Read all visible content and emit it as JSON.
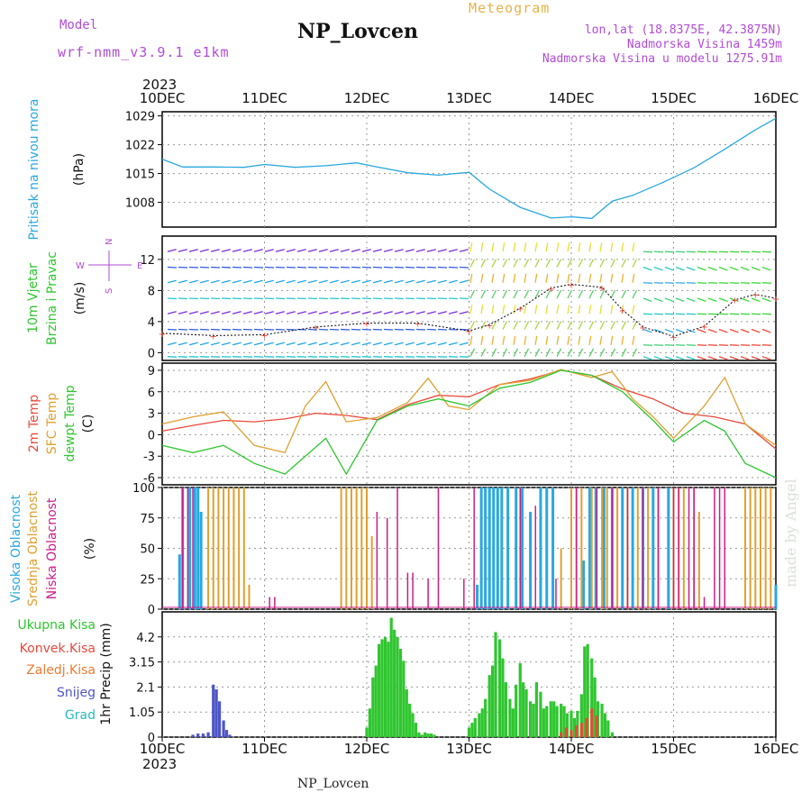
{
  "header": {
    "model_label": "Model",
    "model_name": "wrf-nmm_v3.9.1 e1km",
    "station": "NP_Lovcen",
    "meteogram_label": "Meteogram",
    "lonlat": "lon,lat (18.8375E, 42.3875N)",
    "elevation": "Nadmorska Visina 1459m",
    "elevation_model": "Nadmorska Visina u modelu 1275.91m"
  },
  "footer": {
    "station": "NP_Lovcen",
    "watermark": "made by Angel"
  },
  "axis": {
    "year": "2023",
    "days": [
      "10DEC",
      "11DEC",
      "12DEC",
      "13DEC",
      "14DEC",
      "15DEC",
      "16DEC"
    ]
  },
  "colors": {
    "pressure": "#29a8e0",
    "temp2m": "#e84a3c",
    "sfc": "#e0a030",
    "dewpt": "#2fc62f",
    "cloud_high": "#29a8e0",
    "cloud_mid": "#e0a030",
    "cloud_low": "#cc1d8a",
    "precip_total": "#2fc62f",
    "precip_conv": "#e84a3c",
    "precip_frz": "#ef7a30",
    "precip_snow": "#4d55c8",
    "precip_grad": "#2ab9b9",
    "wind_label": "#2fc62f",
    "ylabel_pressure": "#29a8e0",
    "compass": "#b24bd8"
  },
  "panels": {
    "pressure": {
      "labels": [
        "Pritisak na nivou mora"
      ],
      "unit": "(hPa)"
    },
    "wind": {
      "labels": [
        "10m Vjetar",
        "Brzina i Pravac"
      ],
      "unit": "(m/s)",
      "compass": [
        "N",
        "E",
        "S",
        "W"
      ]
    },
    "temp": {
      "labels": [
        "2m Temp",
        "SFC Temp",
        "dewpt Temp"
      ],
      "unit": "(C)"
    },
    "cloud": {
      "labels": [
        "Visoka Oblacnost",
        "Srednja Oblacnost",
        "Niska Oblacnost"
      ],
      "unit": "(%)"
    },
    "precip": {
      "labels": [
        "Ukupna Kisa",
        "Konvek.Kisa",
        "Zaledj.Kisa",
        "Snijeg",
        "Grad"
      ],
      "unit": "1hr Precip (mm)"
    }
  },
  "chart_data": [
    {
      "type": "line",
      "ylabel": "Pritisak na nivou mora (hPa)",
      "ylim": [
        1002,
        1030
      ],
      "yticks": [
        1008,
        1015,
        1022,
        1029
      ],
      "series": [
        {
          "name": "Pritisak na nivou mora",
          "x": [
            0,
            0.2,
            0.5,
            0.8,
            1.0,
            1.3,
            1.6,
            1.9,
            2.1,
            2.4,
            2.7,
            3.0,
            3.2,
            3.5,
            3.8,
            4.0,
            4.2,
            4.4,
            4.6,
            4.9,
            5.2,
            5.5,
            5.8,
            6.0
          ],
          "values": [
            1018.5,
            1016.6,
            1016.6,
            1016.5,
            1017.2,
            1016.5,
            1016.9,
            1017.6,
            1016.6,
            1015.2,
            1014.6,
            1015.3,
            1011.2,
            1006.8,
            1004.2,
            1004.5,
            1004.1,
            1008.3,
            1009.7,
            1012.9,
            1016.4,
            1020.9,
            1025.6,
            1028.4
          ]
        }
      ]
    },
    {
      "type": "line",
      "ylabel": "10m Vjetar Brzina i Pravac (m/s)",
      "ylim": [
        -1,
        15
      ],
      "yticks": [
        0,
        4,
        8,
        12
      ],
      "series": [
        {
          "name": "10m Vjetar",
          "x": [
            0,
            0.5,
            1.0,
            1.5,
            2.0,
            2.5,
            3.0,
            3.2,
            3.5,
            3.8,
            4.0,
            4.3,
            4.5,
            4.7,
            5.0,
            5.3,
            5.6,
            5.8,
            6.0
          ],
          "values": [
            2.5,
            2.2,
            2.3,
            3.3,
            3.8,
            3.8,
            2.8,
            3.6,
            5.7,
            8.3,
            8.8,
            8.4,
            5.5,
            3.3,
            2.1,
            3.4,
            6.8,
            7.5,
            7.0
          ]
        }
      ]
    },
    {
      "type": "line",
      "ylabel": "2m Temp / SFC Temp / dewpt Temp (C)",
      "ylim": [
        -7,
        10
      ],
      "yticks": [
        -6,
        -3,
        0,
        3,
        6,
        9
      ],
      "series": [
        {
          "name": "2m Temp",
          "x": [
            0,
            0.3,
            0.6,
            0.9,
            1.2,
            1.5,
            1.8,
            2.1,
            2.4,
            2.7,
            3.0,
            3.3,
            3.6,
            3.9,
            4.2,
            4.5,
            4.8,
            5.1,
            5.4,
            5.7,
            6.0
          ],
          "values": [
            0.5,
            1.3,
            2.0,
            1.8,
            2.2,
            3.0,
            2.7,
            2.1,
            4.2,
            5.5,
            5.3,
            7.0,
            7.8,
            9.0,
            8.3,
            6.4,
            5.0,
            3.0,
            2.5,
            1.5,
            -2.0
          ]
        },
        {
          "name": "SFC Temp",
          "x": [
            0,
            0.3,
            0.6,
            0.9,
            1.2,
            1.4,
            1.6,
            1.8,
            2.1,
            2.4,
            2.6,
            2.8,
            3.0,
            3.3,
            3.6,
            3.9,
            4.2,
            4.4,
            4.6,
            4.8,
            5.0,
            5.3,
            5.5,
            5.7,
            6.0
          ],
          "values": [
            1.5,
            2.5,
            3.2,
            -1.5,
            -2.5,
            4.0,
            7.4,
            1.8,
            2.4,
            4.5,
            7.9,
            4.0,
            3.5,
            7.0,
            7.6,
            9.1,
            8.0,
            8.8,
            5.0,
            2.5,
            -0.5,
            4.0,
            8.0,
            1.5,
            -1.5
          ]
        },
        {
          "name": "dewpt Temp",
          "x": [
            0,
            0.3,
            0.6,
            0.9,
            1.2,
            1.4,
            1.6,
            1.8,
            2.1,
            2.4,
            2.7,
            3.0,
            3.3,
            3.6,
            3.9,
            4.2,
            4.5,
            4.8,
            5.0,
            5.3,
            5.5,
            5.7,
            6.0
          ],
          "values": [
            -1.5,
            -2.5,
            -1.5,
            -4.0,
            -5.5,
            -3.0,
            -0.5,
            -5.5,
            2.0,
            4.0,
            5.0,
            4.0,
            6.5,
            7.3,
            9.0,
            8.3,
            6.0,
            2.0,
            -1.0,
            2.0,
            0.5,
            -4.0,
            -6.0
          ]
        }
      ]
    },
    {
      "type": "bar",
      "ylabel": "Oblacnost (%)",
      "ylim": [
        0,
        100
      ],
      "yticks": [
        0,
        25,
        50,
        75,
        100
      ],
      "series": [
        {
          "name": "Visoka Oblacnost",
          "x": [
            0.17,
            0.2,
            0.27,
            0.32,
            0.35,
            0.38,
            3.08,
            3.12,
            3.16,
            3.2,
            3.24,
            3.28,
            3.32,
            3.38,
            3.46,
            3.52,
            3.6,
            3.7,
            3.76,
            3.82,
            4.12,
            4.18,
            4.24,
            4.32,
            4.4,
            4.5,
            4.6,
            4.7,
            4.8,
            4.95,
            6.0
          ],
          "values": [
            45,
            100,
            100,
            100,
            100,
            80,
            20,
            100,
            100,
            100,
            100,
            100,
            100,
            100,
            100,
            100,
            80,
            100,
            100,
            100,
            40,
            100,
            100,
            100,
            100,
            100,
            100,
            100,
            100,
            100,
            20
          ]
        },
        {
          "name": "Srednja Oblacnost",
          "x": [
            0.45,
            0.5,
            0.55,
            0.6,
            0.65,
            0.7,
            0.75,
            0.8,
            0.85,
            1.75,
            1.8,
            1.85,
            1.9,
            1.95,
            2.0,
            2.05,
            3.9,
            4.0,
            4.05,
            4.1,
            4.2,
            4.3,
            4.35,
            4.45,
            4.55,
            4.65,
            4.75,
            4.85,
            5.0,
            5.05,
            5.1,
            5.2,
            5.25,
            5.7,
            5.75,
            5.8,
            5.85,
            5.9,
            5.95
          ],
          "values": [
            100,
            100,
            100,
            100,
            100,
            100,
            100,
            100,
            20,
            100,
            100,
            100,
            100,
            100,
            100,
            60,
            50,
            100,
            100,
            100,
            100,
            100,
            100,
            100,
            100,
            100,
            100,
            100,
            100,
            100,
            100,
            100,
            80,
            100,
            100,
            100,
            100,
            100,
            100
          ]
        },
        {
          "name": "Niska Oblacnost",
          "x": [
            0.2,
            0.25,
            0.3,
            1.05,
            1.1,
            2.1,
            2.2,
            2.3,
            2.4,
            2.45,
            2.6,
            2.7,
            2.95,
            3.05,
            3.5,
            3.65,
            3.85,
            4.05,
            4.25,
            4.4,
            4.55,
            4.7,
            4.85,
            5.0,
            5.05,
            5.15,
            5.2,
            5.3,
            5.4,
            5.45,
            5.5
          ],
          "values": [
            100,
            100,
            100,
            10,
            10,
            80,
            75,
            100,
            30,
            30,
            25,
            100,
            25,
            100,
            100,
            85,
            25,
            100,
            100,
            100,
            100,
            100,
            100,
            100,
            100,
            100,
            100,
            10,
            100,
            100,
            100
          ]
        }
      ]
    },
    {
      "type": "bar",
      "ylabel": "1hr Precip (mm)",
      "ylim": [
        0,
        5.25
      ],
      "yticks": [
        0,
        1.05,
        2.1,
        3.15,
        4.2
      ],
      "series": [
        {
          "name": "Ukupna Kisa",
          "x": [
            2.0,
            2.03,
            2.06,
            2.09,
            2.12,
            2.15,
            2.18,
            2.21,
            2.24,
            2.27,
            2.3,
            2.33,
            2.36,
            2.39,
            2.42,
            2.45,
            2.48,
            2.51,
            2.54,
            2.57,
            2.6,
            2.63,
            2.66,
            3.0,
            3.03,
            3.06,
            3.1,
            3.13,
            3.16,
            3.2,
            3.23,
            3.26,
            3.3,
            3.33,
            3.36,
            3.4,
            3.43,
            3.46,
            3.5,
            3.53,
            3.56,
            3.6,
            3.63,
            3.66,
            3.7,
            3.73,
            3.76,
            3.8,
            3.83,
            3.86,
            3.9,
            3.93,
            3.96,
            4.0,
            4.03,
            4.06,
            4.1,
            4.13,
            4.16,
            4.2,
            4.23,
            4.26,
            4.3,
            4.33,
            4.36,
            4.4
          ],
          "values": [
            0.4,
            1.2,
            2.5,
            3.0,
            3.9,
            4.1,
            4.2,
            4.0,
            5.0,
            4.5,
            4.2,
            3.7,
            3.2,
            2.0,
            1.4,
            1.0,
            0.6,
            0.2,
            0.1,
            0.2,
            0.15,
            0.15,
            0.1,
            0.4,
            0.6,
            0.8,
            1.0,
            1.2,
            1.6,
            2.6,
            3.0,
            4.4,
            4.1,
            3.3,
            2.3,
            1.6,
            1.2,
            2.2,
            3.1,
            2.3,
            2.0,
            1.5,
            1.4,
            2.3,
            1.9,
            1.2,
            1.3,
            1.5,
            1.5,
            1.3,
            1.4,
            1.3,
            1.0,
            1.1,
            0.8,
            1.1,
            1.8,
            3.8,
            3.9,
            3.3,
            2.5,
            1.5,
            1.4,
            1.0,
            0.7,
            0.2
          ]
        },
        {
          "name": "Konvek.Kisa",
          "x": [
            3.9,
            3.95,
            4.0,
            4.05,
            4.1,
            4.15,
            4.2,
            4.25
          ],
          "values": [
            0.2,
            0.4,
            0.3,
            0.5,
            0.6,
            0.8,
            1.2,
            0.9
          ]
        },
        {
          "name": "Snijeg",
          "x": [
            0.3,
            0.35,
            0.4,
            0.45,
            0.5,
            0.53,
            0.56,
            0.6,
            0.63,
            0.66
          ],
          "values": [
            0.1,
            0.15,
            0.15,
            0.2,
            2.2,
            2.0,
            1.5,
            0.7,
            0.3,
            0.1
          ]
        }
      ]
    }
  ]
}
